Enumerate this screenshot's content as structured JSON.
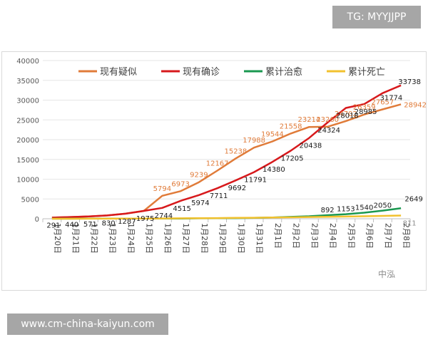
{
  "banner": "TG: MYYJJPP",
  "footer": "www.cm-china-kaiyun.com",
  "watermark": "中泓",
  "chart_data": {
    "type": "line",
    "title": "",
    "xlabel": "",
    "ylabel": "",
    "ylim": [
      0,
      40000
    ],
    "yticks": [
      0,
      5000,
      10000,
      15000,
      20000,
      25000,
      30000,
      35000,
      40000
    ],
    "grid": true,
    "legend_position": "top",
    "categories": [
      "1月20日",
      "1月21日",
      "1月22日",
      "1月23日",
      "1月24日",
      "1月25日",
      "1月26日",
      "1月27日",
      "1月28日",
      "1月29日",
      "1月30日",
      "1月31日",
      "2月1日",
      "2月2日",
      "2月3日",
      "2月4日",
      "2月5日",
      "2月6日",
      "2月7日",
      "2月8日"
    ],
    "series": [
      {
        "name": "现有疑似",
        "color": "#e07b39",
        "values": [
          291,
          440,
          571,
          830,
          1287,
          1975,
          5794,
          6973,
          9239,
          12167,
          15238,
          17988,
          19544,
          21558,
          23214,
          23260,
          24702,
          26359,
          27657,
          28942
        ],
        "labels": [
          "",
          "",
          "",
          "",
          "",
          "",
          "5794",
          "6973",
          "9239",
          "12167",
          "15238",
          "17988",
          "19544",
          "21558",
          "23214",
          "23260",
          "24702",
          "26359",
          "27657",
          "28942"
        ]
      },
      {
        "name": "现有确诊",
        "color": "#d7191c",
        "values": [
          291,
          440,
          571,
          830,
          1287,
          1975,
          2744,
          4515,
          5974,
          7711,
          9692,
          11791,
          14380,
          17205,
          20438,
          24324,
          28018,
          28985,
          31774,
          33738
        ],
        "labels": [
          "291",
          "440",
          "571",
          "830",
          "1287",
          "1975",
          "2744",
          "4515",
          "5974",
          "7711",
          "9692",
          "11791",
          "14380",
          "17205",
          "20438",
          "24324",
          "28018",
          "28985",
          "31774",
          "33738"
        ]
      },
      {
        "name": "累计治愈",
        "color": "#1a9850",
        "values": [
          25,
          25,
          28,
          34,
          38,
          49,
          51,
          60,
          103,
          124,
          171,
          243,
          328,
          475,
          632,
          892,
          1153,
          1540,
          2050,
          2649
        ],
        "labels": [
          "",
          "",
          "",
          "",
          "",
          "",
          "",
          "",
          "",
          "",
          "",
          "",
          "",
          "",
          "",
          "892",
          "1153",
          "1540",
          "2050",
          "2649"
        ]
      },
      {
        "name": "累计死亡",
        "color": "#f2c12e",
        "values": [
          6,
          9,
          17,
          25,
          41,
          56,
          80,
          106,
          132,
          170,
          213,
          259,
          304,
          361,
          425,
          490,
          563,
          636,
          722,
          811
        ],
        "labels": [
          "",
          "",
          "",
          "",
          "",
          "",
          "",
          "",
          "",
          "",
          "",
          "",
          "",
          "",
          "",
          "",
          "",
          "",
          "",
          "811"
        ]
      }
    ]
  }
}
